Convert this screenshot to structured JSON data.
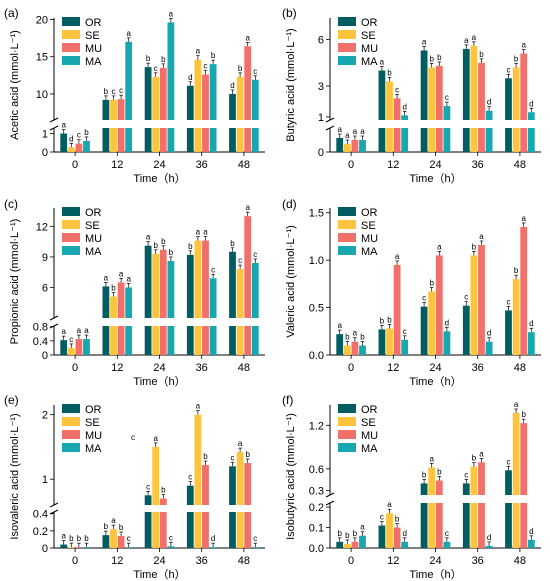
{
  "colors": {
    "OR": "#005e63",
    "SE": "#ffc43d",
    "MU": "#f2706a",
    "MA": "#16a7b0"
  },
  "chart_data": [
    {
      "type": "bar",
      "panel": "(a)",
      "ylabel": "Acetic acid (mmol·L⁻¹)",
      "xlabel": "Time（h）",
      "categories": [
        "0",
        "12",
        "24",
        "36",
        "48"
      ],
      "legend": [
        "OR",
        "SE",
        "MU",
        "MA"
      ],
      "ylim_lower": [
        0,
        1.3
      ],
      "ylim_upper": [
        6.5,
        20.2
      ],
      "lower_ticks": [
        "0",
        "1"
      ],
      "upper_ticks": [
        "10",
        "15",
        "20"
      ],
      "series": [
        {
          "name": "OR",
          "values": [
            1.0,
            9.2,
            13.6,
            11.1,
            10.0
          ],
          "letters": [
            "a",
            "b",
            "b",
            "d",
            "d"
          ]
        },
        {
          "name": "SE",
          "values": [
            0.25,
            9.2,
            12.3,
            14.6,
            12.3
          ],
          "letters": [
            "d",
            "c",
            "c",
            "a",
            "b"
          ]
        },
        {
          "name": "MU",
          "values": [
            0.45,
            9.3,
            13.5,
            12.6,
            16.4
          ],
          "letters": [
            "c",
            "c",
            "b",
            "c",
            "a"
          ]
        },
        {
          "name": "MA",
          "values": [
            0.6,
            17.0,
            19.6,
            14.0,
            11.9
          ],
          "letters": [
            "b",
            "a",
            "a",
            "b",
            "c"
          ]
        }
      ]
    },
    {
      "type": "bar",
      "panel": "(b)",
      "ylabel": "Butyric acid (mmol·L⁻¹)",
      "xlabel": "Time（h）",
      "categories": [
        "0",
        "12",
        "24",
        "36",
        "48"
      ],
      "legend": [
        "OR",
        "SE",
        "MU",
        "MA"
      ],
      "ylim_lower": [
        0,
        0.6
      ],
      "ylim_upper": [
        0.8,
        7.4
      ],
      "lower_ticks": [
        "0"
      ],
      "upper_ticks": [
        "1",
        "3",
        "6"
      ],
      "series": [
        {
          "name": "OR",
          "values": [
            0.35,
            4.0,
            5.3,
            5.4,
            3.5
          ],
          "letters": [
            "a",
            "a",
            "a",
            "a",
            "c"
          ]
        },
        {
          "name": "SE",
          "values": [
            0.2,
            3.3,
            4.2,
            5.6,
            4.2
          ],
          "letters": [
            "a",
            "b",
            "b",
            "a",
            "b"
          ]
        },
        {
          "name": "MU",
          "values": [
            0.3,
            2.2,
            4.3,
            4.5,
            5.1
          ],
          "letters": [
            "a",
            "c",
            "b",
            "b",
            "a"
          ]
        },
        {
          "name": "MA",
          "values": [
            0.3,
            1.1,
            1.7,
            1.4,
            1.3
          ],
          "letters": [
            "a",
            "d",
            "c",
            "d",
            "d"
          ]
        }
      ]
    },
    {
      "type": "bar",
      "panel": "(c)",
      "ylabel": "Propionic acid (mmol·L⁻¹)",
      "xlabel": "Time（h）",
      "categories": [
        "0",
        "12",
        "24",
        "36",
        "48"
      ],
      "legend": [
        "OR",
        "SE",
        "MU",
        "MA"
      ],
      "ylim_lower": [
        0,
        0.82
      ],
      "ylim_upper": [
        3.0,
        13.8
      ],
      "lower_ticks": [
        "0",
        "0.4",
        "0.8"
      ],
      "upper_ticks": [
        "6",
        "9",
        "12"
      ],
      "series": [
        {
          "name": "OR",
          "values": [
            0.42,
            6.1,
            10.1,
            9.2,
            9.5
          ],
          "letters": [
            "a",
            "a",
            "a",
            "b",
            "b"
          ]
        },
        {
          "name": "SE",
          "values": [
            0.2,
            5.1,
            9.3,
            10.6,
            7.8
          ],
          "letters": [
            "c",
            "b",
            "b",
            "a",
            "c"
          ]
        },
        {
          "name": "MU",
          "values": [
            0.45,
            6.5,
            9.7,
            10.6,
            13.0
          ],
          "letters": [
            "a",
            "a",
            "b",
            "a",
            "a"
          ]
        },
        {
          "name": "MA",
          "values": [
            0.45,
            6.0,
            8.6,
            6.9,
            8.4
          ],
          "letters": [
            "a",
            "a",
            "b",
            "c",
            "c"
          ]
        }
      ]
    },
    {
      "type": "bar",
      "panel": "(d)",
      "ylabel": "Valeric acid (mmol·L⁻¹)",
      "xlabel": "Time（h）",
      "categories": [
        "0",
        "12",
        "24",
        "36",
        "48"
      ],
      "legend": [
        "OR",
        "SE",
        "MU",
        "MA"
      ],
      "ylim": [
        0,
        1.55
      ],
      "ticks": [
        "0.0",
        "0.5",
        "1.0",
        "1.5"
      ],
      "series": [
        {
          "name": "OR",
          "values": [
            0.22,
            0.27,
            0.51,
            0.52,
            0.47
          ],
          "letters": [
            "a",
            "b",
            "c",
            "c",
            "c"
          ]
        },
        {
          "name": "SE",
          "values": [
            0.1,
            0.28,
            0.67,
            1.05,
            0.8
          ],
          "letters": [
            "b",
            "b",
            "b",
            "b",
            "b"
          ]
        },
        {
          "name": "MU",
          "values": [
            0.14,
            0.95,
            1.05,
            1.16,
            1.35
          ],
          "letters": [
            "a",
            "a",
            "a",
            "a",
            "a"
          ]
        },
        {
          "name": "MA",
          "values": [
            0.1,
            0.16,
            0.25,
            0.14,
            0.24
          ],
          "letters": [
            "b",
            "c",
            "d",
            "d",
            "d"
          ]
        }
      ]
    },
    {
      "type": "bar",
      "panel": "(e)",
      "ylabel": "Isovaleric acid (mmol·L⁻¹)",
      "xlabel": "Time（h）",
      "categories": [
        "0",
        "12",
        "24",
        "36",
        "48"
      ],
      "legend": [
        "OR",
        "SE",
        "MU",
        "MA"
      ],
      "ylim_lower": [
        0,
        0.42
      ],
      "ylim_upper": [
        0.6,
        2.15
      ],
      "lower_ticks": [
        "0",
        "0.2",
        "0.4"
      ],
      "upper_ticks": [
        "1",
        "2"
      ],
      "stray_label": "c",
      "series": [
        {
          "name": "OR",
          "values": [
            0.04,
            0.15,
            0.75,
            0.9,
            1.2
          ],
          "letters": [
            "a",
            "b",
            "c",
            "c",
            "c"
          ]
        },
        {
          "name": "SE",
          "values": [
            0.01,
            0.22,
            1.5,
            2.0,
            1.42
          ],
          "letters": [
            "b",
            "a",
            "a",
            "a",
            "a"
          ]
        },
        {
          "name": "MU",
          "values": [
            0.01,
            0.14,
            0.7,
            1.22,
            1.25
          ],
          "letters": [
            "b",
            "b",
            "b",
            "b",
            "b"
          ]
        },
        {
          "name": "MA",
          "values": [
            0.01,
            0.01,
            0.02,
            0.01,
            0.01
          ],
          "letters": [
            "b",
            "c",
            "c",
            "d",
            "c"
          ]
        }
      ]
    },
    {
      "type": "bar",
      "panel": "(f)",
      "ylabel": "Isobutyric acid (mmol·L⁻¹)",
      "xlabel": "Time（h）",
      "categories": [
        "0",
        "12",
        "24",
        "36",
        "48"
      ],
      "legend": [
        "OR",
        "SE",
        "MU",
        "MA"
      ],
      "ylim_lower": [
        0,
        0.22
      ],
      "ylim_upper": [
        0.24,
        1.48
      ],
      "lower_ticks": [
        "0.0",
        "0.1",
        "0.2"
      ],
      "upper_ticks": [
        "0.3",
        "0.6",
        "1.2"
      ],
      "series": [
        {
          "name": "OR",
          "values": [
            0.03,
            0.11,
            0.4,
            0.4,
            0.58
          ],
          "letters": [
            "b",
            "c",
            "b",
            "c",
            "c"
          ]
        },
        {
          "name": "SE",
          "values": [
            0.02,
            0.17,
            0.62,
            0.63,
            1.37
          ],
          "letters": [
            "b",
            "a",
            "a",
            "b",
            "a"
          ]
        },
        {
          "name": "MU",
          "values": [
            0.03,
            0.1,
            0.44,
            0.69,
            1.23
          ],
          "letters": [
            "b",
            "b",
            "b",
            "a",
            "b"
          ]
        },
        {
          "name": "MA",
          "values": [
            0.06,
            0.03,
            0.03,
            0.01,
            0.04
          ],
          "letters": [
            "a",
            "d",
            "c",
            "d",
            "d"
          ]
        }
      ]
    }
  ]
}
